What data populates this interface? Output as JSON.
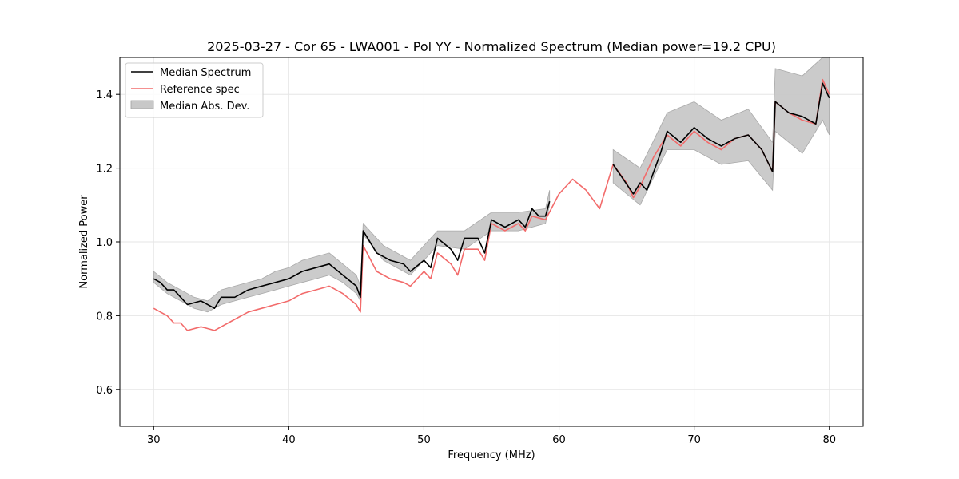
{
  "chart_data": {
    "type": "line",
    "title": "2025-03-27 - Cor 65 - LWA001 - Pol YY - Normalized Spectrum (Median power=19.2 CPU)",
    "xlabel": "Frequency (MHz)",
    "ylabel": "Normalized Power",
    "xlim": [
      27.5,
      82.5
    ],
    "ylim": [
      0.5,
      1.5
    ],
    "xticks": [
      30,
      40,
      50,
      60,
      70,
      80
    ],
    "yticks": [
      0.6,
      0.8,
      1.0,
      1.2,
      1.4
    ],
    "xtick_labels": [
      "30",
      "40",
      "50",
      "60",
      "70",
      "80"
    ],
    "ytick_labels": [
      "0.6",
      "0.8",
      "1.0",
      "1.2",
      "1.4"
    ],
    "grid": true,
    "legend_position": "top-left",
    "legend": [
      "Median Spectrum",
      "Reference spec",
      "Median Abs. Dev."
    ],
    "colors": {
      "median": "#000000",
      "reference": "#f26b6b",
      "mad": "#c8c8c8"
    },
    "series": [
      {
        "name": "Median Spectrum",
        "x": [
          30.0,
          30.5,
          31.0,
          31.5,
          32.0,
          32.5,
          33.5,
          34.5,
          35.0,
          36.0,
          37.0,
          38.0,
          39.0,
          40.0,
          41.0,
          42.0,
          43.0,
          44.0,
          45.0,
          45.3,
          45.5,
          46.5,
          47.5,
          48.5,
          49.0,
          50.0,
          50.5,
          51.0,
          52.0,
          52.5,
          53.0,
          54.0,
          54.5,
          55.0,
          56.0,
          57.0,
          57.5,
          58.0,
          58.5,
          59.0,
          59.3,
          64.0,
          65.5,
          66.0,
          66.5,
          67.5,
          68.0,
          69.0,
          70.0,
          71.0,
          72.0,
          73.0,
          74.0,
          75.0,
          75.8,
          76.0,
          77.0,
          78.0,
          79.0,
          79.5,
          80.0
        ],
        "values": [
          0.9,
          0.89,
          0.87,
          0.87,
          0.85,
          0.83,
          0.84,
          0.82,
          0.85,
          0.85,
          0.87,
          0.88,
          0.89,
          0.9,
          0.92,
          0.93,
          0.94,
          0.91,
          0.88,
          0.85,
          1.03,
          0.97,
          0.95,
          0.94,
          0.92,
          0.95,
          0.93,
          1.01,
          0.98,
          0.95,
          1.01,
          1.01,
          0.97,
          1.06,
          1.04,
          1.06,
          1.04,
          1.09,
          1.07,
          1.07,
          1.11,
          1.21,
          1.13,
          1.16,
          1.14,
          1.24,
          1.3,
          1.27,
          1.31,
          1.28,
          1.26,
          1.28,
          1.29,
          1.25,
          1.19,
          1.38,
          1.35,
          1.34,
          1.32,
          1.43,
          1.39
        ]
      },
      {
        "name": "Reference spec",
        "x": [
          30.0,
          30.5,
          31.0,
          31.5,
          32.0,
          32.5,
          33.5,
          34.5,
          35.0,
          36.0,
          37.0,
          38.0,
          39.0,
          40.0,
          41.0,
          42.0,
          43.0,
          44.0,
          45.0,
          45.3,
          45.5,
          46.5,
          47.5,
          48.5,
          49.0,
          50.0,
          50.5,
          51.0,
          52.0,
          52.5,
          53.0,
          54.0,
          54.5,
          55.0,
          56.0,
          57.0,
          57.5,
          58.0,
          59.0,
          60.0,
          61.0,
          62.0,
          63.0,
          64.0,
          65.0,
          65.5,
          66.0,
          67.0,
          68.0,
          69.0,
          70.0,
          71.0,
          72.0,
          73.0,
          74.0,
          75.0,
          75.8,
          76.0,
          77.0,
          78.0,
          79.0,
          79.5,
          80.0
        ],
        "values": [
          0.82,
          0.81,
          0.8,
          0.78,
          0.78,
          0.76,
          0.77,
          0.76,
          0.77,
          0.79,
          0.81,
          0.82,
          0.83,
          0.84,
          0.86,
          0.87,
          0.88,
          0.86,
          0.83,
          0.81,
          0.99,
          0.92,
          0.9,
          0.89,
          0.88,
          0.92,
          0.9,
          0.97,
          0.94,
          0.91,
          0.98,
          0.98,
          0.95,
          1.05,
          1.03,
          1.05,
          1.03,
          1.07,
          1.06,
          1.13,
          1.17,
          1.14,
          1.09,
          1.21,
          1.16,
          1.12,
          1.15,
          1.23,
          1.29,
          1.26,
          1.3,
          1.27,
          1.25,
          1.28,
          1.29,
          1.25,
          1.19,
          1.38,
          1.35,
          1.33,
          1.32,
          1.44,
          1.4
        ]
      },
      {
        "name": "Median Abs. Dev.",
        "x": [
          30.0,
          31.0,
          32.0,
          33.0,
          34.0,
          35.0,
          36.0,
          37.0,
          38.0,
          39.0,
          40.0,
          41.0,
          42.0,
          43.0,
          44.0,
          45.0,
          45.3,
          45.5,
          47.0,
          49.0,
          51.0,
          53.0,
          55.0,
          57.0,
          59.0,
          59.3,
          64.0,
          66.0,
          68.0,
          70.0,
          72.0,
          74.0,
          75.8,
          76.0,
          78.0,
          79.5,
          80.0
        ],
        "lower": [
          0.89,
          0.86,
          0.84,
          0.82,
          0.81,
          0.83,
          0.84,
          0.85,
          0.86,
          0.87,
          0.88,
          0.89,
          0.9,
          0.91,
          0.89,
          0.86,
          0.84,
          1.02,
          0.95,
          0.91,
          0.99,
          0.98,
          1.03,
          1.03,
          1.05,
          1.1,
          1.16,
          1.1,
          1.25,
          1.25,
          1.21,
          1.22,
          1.14,
          1.3,
          1.24,
          1.33,
          1.29
        ],
        "upper": [
          0.92,
          0.89,
          0.87,
          0.85,
          0.84,
          0.87,
          0.88,
          0.89,
          0.9,
          0.92,
          0.93,
          0.95,
          0.96,
          0.97,
          0.94,
          0.91,
          0.88,
          1.05,
          0.99,
          0.95,
          1.03,
          1.03,
          1.08,
          1.08,
          1.09,
          1.14,
          1.25,
          1.2,
          1.35,
          1.38,
          1.33,
          1.36,
          1.27,
          1.47,
          1.45,
          1.5,
          1.5
        ]
      }
    ]
  }
}
